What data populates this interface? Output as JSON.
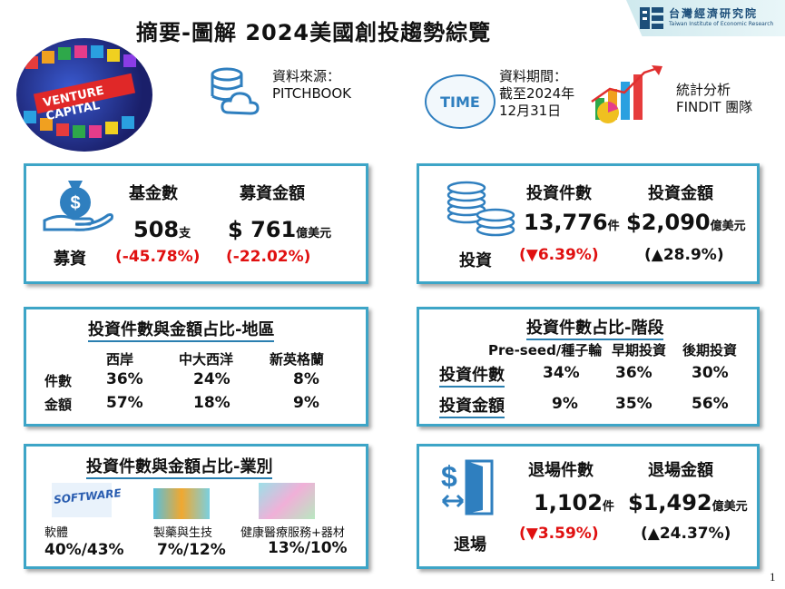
{
  "header": {
    "title": "摘要-圖解 2024美國創投趨勢綜覽",
    "logo_zh": "台灣經濟研究院",
    "logo_en": "Taiwan Institute of Economic Research"
  },
  "sources": {
    "cover_image_text": "VENTURE CAPITAL",
    "data_source_label": "資料來源：",
    "data_source_value": "PITCHBOOK",
    "time_icon_text": "TIME",
    "period_label": "資料期間：",
    "period_value_1": "截至2024年",
    "period_value_2": "12月31日",
    "analysis_1": "統計分析",
    "analysis_2": "FINDIT 團隊"
  },
  "fundraising": {
    "row_label": "募資",
    "col1_title": "基金數",
    "col2_title": "募資金額",
    "funds_count": "508",
    "funds_unit": "支",
    "funds_change": "(-45.78%)",
    "amount_prefix": "$ ",
    "amount": "761",
    "amount_unit": "億美元",
    "amount_change": "(-22.02%)"
  },
  "investment": {
    "row_label": "投資",
    "col1_title": "投資件數",
    "col2_title": "投資金額",
    "deals": "13,776",
    "deals_unit": "件",
    "deals_change": "(▼6.39%)",
    "amount": "$2,090",
    "amount_unit": "億美元",
    "amount_change": "(▲28.9%)"
  },
  "region": {
    "title": "投資件數與金額占比-地區",
    "columns": [
      "西岸",
      "中大西洋",
      "新英格蘭"
    ],
    "row1_label": "件數",
    "row1": [
      "36%",
      "24%",
      "8%"
    ],
    "row2_label": "金額",
    "row2": [
      "57%",
      "18%",
      "9%"
    ]
  },
  "stage": {
    "title": "投資件數占比-階段",
    "columns": [
      "Pre-seed/種子輪",
      "早期投資",
      "後期投資"
    ],
    "row1_label": "投資件數",
    "row1": [
      "34%",
      "36%",
      "30%"
    ],
    "row2_label": "投資金額",
    "row2": [
      "9%",
      "35%",
      "56%"
    ]
  },
  "industry": {
    "title": "投資件數與金額占比-業別",
    "software_img_text": "SOFTWARE",
    "items": [
      {
        "label": "軟體",
        "value": "40%/43%"
      },
      {
        "label": "製藥與生技",
        "value": "7%/12%"
      },
      {
        "label": "健康醫療服務+器材",
        "value": "13%/10%"
      }
    ]
  },
  "exit": {
    "row_label": "退場",
    "col1_title": "退場件數",
    "col2_title": "退場金額",
    "count": "1,102",
    "count_unit": "件",
    "count_change": "(▼3.59%)",
    "amount": "$1,492",
    "amount_unit": "億美元",
    "amount_change": "(▲24.37%)"
  },
  "page_number": "1",
  "colors": {
    "border": "#3da5c7",
    "red": "#e01010",
    "brand": "#1d4f7a",
    "icon_blue": "#2f7fbf"
  }
}
